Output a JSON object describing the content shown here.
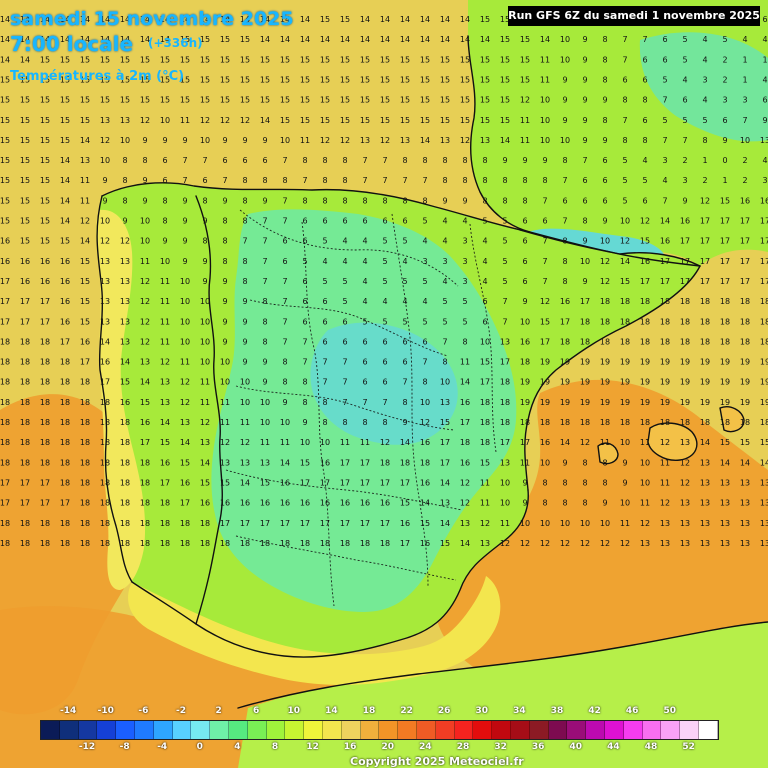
{
  "header": {
    "date": "samedi 15 novembre 2025",
    "time": "7:00 locale",
    "offset": "(+336h)",
    "variable": "Températures à 2m (°C)",
    "run": "Run GFS 6Z du samedi 1 novembre 2025"
  },
  "legend": {
    "top_labels": [
      "-14",
      "-10",
      "-6",
      "-2",
      "2",
      "6",
      "10",
      "14",
      "18",
      "22",
      "26",
      "30",
      "34",
      "38",
      "42",
      "46",
      "50"
    ],
    "bottom_labels": [
      "-12",
      "-8",
      "-4",
      "0",
      "4",
      "8",
      "12",
      "16",
      "20",
      "24",
      "28",
      "32",
      "36",
      "40",
      "44",
      "48",
      "52"
    ],
    "colors": [
      "#0b1b57",
      "#0f2f7b",
      "#1538a1",
      "#1540d7",
      "#1a5fff",
      "#1f7bff",
      "#2ea6ff",
      "#58d1ff",
      "#76e9f1",
      "#6ff0a8",
      "#56ea80",
      "#79ef55",
      "#a0f33b",
      "#c8f531",
      "#f0f53a",
      "#f3e64e",
      "#eed25e",
      "#f0b03c",
      "#f29427",
      "#f27a23",
      "#ef5b25",
      "#f13d24",
      "#f5231f",
      "#e30d0d",
      "#c2080f",
      "#a60d17",
      "#8c1a24",
      "#7d0b50",
      "#9a0d78",
      "#bc0ab0",
      "#de11d2",
      "#f53cf0",
      "#f86ff1",
      "#f8a2f6",
      "#fad2f8",
      "#ffffff"
    ]
  },
  "map": {
    "colors": {
      "sea_warm": "#e7cf55",
      "land_green": "#a7ea3a",
      "land_green_light": "#c7ef42",
      "land_cool": "#75ea95",
      "land_cold": "#65d9d4",
      "orange": "#ef9d2e",
      "orange_light": "#f3c147",
      "yellow": "#f2e85c",
      "border": "#111111"
    },
    "labels": {
      "rows": [
        "14 14 14 14 14 14 14 14 14 14 14 14 14 14 14 14 15 15 14 14 14 14 14 14 15 15 15 14 10 9 8 7 7 6 5 5 7 6 6",
        "14 14 14 14 14 14 14 14 14 15 15 15 15 14 14 14 14 14 14 14 14 14 14 14 14 15 15 14 10 9 8 7 7 6 5 4 5 4 4",
        "14 14 15 15 15 15 15 15 15 15 15 15 15 15 15 15 15 15 15 15 15 15 15 15 15 15 15 11 10 9 8 7 6 6 5 4 2 1 1",
        "15 15 15 15 15 15 15 15 15 15 15 15 15 15 15 15 15 15 15 15 15 15 15 15 15 15 15 11 9 9 8 6 6 5 4 3 2 1 4",
        "15 15 15 15 15 15 15 15 15 15 15 15 15 15 15 15 15 15 15 15 15 15 15 15 15 15 12 10 9 9 9 8 8 7 6 4 3 3 6",
        "15 15 15 15 15 13 13 12 10 11 12 12 12 14 15 15 15 15 15 15 15 15 15 15 15 15 11 10 9 9 8 7 6 5 5 5 6 7 9",
        "15 15 15 15 14 12 10 9 9 9 10 9 9 9 10 11 12 12 13 12 13 14 13 12 13 14 11 10 10 9 9 8 8 7 7 8 9 10 13",
        "15 15 15 14 13 10 8 8 6 7 7 6 6 6 7 8 8 8 7 7 8 8 8 8 8 9 9 9 8 7 6 5 4 3 2 1 0 2 4",
        "15 15 15 14 11 9 8 9 6 7 6 7 8 8 8 7 8 8 7 7 7 7 8 8 8 8 8 8 7 6 6 5 5 4 3 2 1 2 3",
        "15 15 15 14 11 9 8 9 8 9 8 9 8 9 7 8 8 8 8 8 8 8 9 9 8 8 8 7 6 6 6 5 6 7 9 12 15 16 16",
        "15 15 15 14 12 10 9 10 8 9 9 8 8 7 7 6 6 6 6 6 6 5 4 4 5 5 6 6 7 8 9 10 12 14 16 17 17 17 17",
        "16 15 15 15 14 12 12 10 9 9 8 8 7 7 6 6 5 4 4 5 5 4 4 3 4 5 6 7 8 9 10 12 15 16 17 17 17 17 17",
        "16 16 16 16 15 13 13 11 10 9 9 8 8 7 6 5 4 4 4 5 4 3 3 3 4 5 6 7 8 10 12 14 16 17 17 17 17 17 17",
        "17 16 16 16 15 13 13 12 11 10 9 9 8 7 7 6 5 5 4 5 5 5 4 3 4 5 6 7 8 9 12 15 17 17 17 17 17 17 17",
        "17 17 17 16 15 13 13 12 11 10 10 9 9 8 7 6 6 5 4 4 4 4 5 5 6 7 9 12 16 17 18 18 18 18 18 18 18 18 18",
        "17 17 17 16 15 13 13 12 11 10 10 9 9 8 7 6 6 6 5 5 5 5 5 5 6 7 10 15 17 18 18 18 18 18 18 18 18 18 18",
        "18 18 18 17 16 14 13 12 11 10 10 9 9 8 7 7 6 6 6 6 6 6 7 8 10 13 16 17 18 18 18 18 18 18 18 18 18 18 18",
        "18 18 18 18 17 16 14 13 12 11 10 10 9 9 8 7 7 7 6 6 6 7 8 11 15 17 18 19 19 19 19 19 19 19 19 19 19 19 19",
        "18 18 18 18 18 17 15 14 13 12 11 10 10 9 8 8 7 7 6 6 7 8 10 14 17 18 19 19 19 19 19 19 19 19 19 19 19 19 19",
        "18 18 18 18 18 18 16 15 13 12 11 11 10 10 9 8 8 7 7 7 8 10 13 16 18 18 19 19 19 19 19 19 19 19 19 19 19 19 19",
        "18 18 18 18 18 18 18 16 14 13 12 11 11 10 10 9 8 8 8 8 9 12 15 17 18 18 18 18 18 18 18 18 18 18 18 18 18 18 18",
        "18 18 18 18 18 18 18 17 15 14 13 12 12 11 11 10 10 11 11 12 14 16 17 18 18 17 17 16 14 12 11 10 11 12 13 14 15 15 15",
        "18 18 18 18 18 18 18 18 16 15 14 13 13 13 14 15 16 17 17 18 18 18 17 16 15 13 11 10 9 8 8 9 10 11 12 13 14 14 14",
        "17 17 17 18 18 18 18 18 17 16 15 15 14 15 16 17 17 17 17 17 17 16 14 12 11 10 9 8 8 8 8 9 10 11 12 13 13 13 13",
        "17 17 17 17 18 18 18 18 18 17 16 16 16 16 16 16 16 16 16 16 15 14 13 12 11 10 9 8 8 8 9 10 11 12 13 13 13 13 13",
        "18 18 18 18 18 18 18 18 18 18 18 17 17 17 17 17 17 17 17 17 16 15 14 13 12 11 10 10 10 10 10 11 12 13 13 13 13 13 13",
        "18 18 18 18 18 18 18 18 18 18 18 18 18 18 18 18 18 18 18 18 17 16 15 14 13 12 12 12 12 12 12 12 13 13 13 13 13 13 13"
      ]
    }
  },
  "copyright": "Copyright 2025 Meteociel.fr"
}
